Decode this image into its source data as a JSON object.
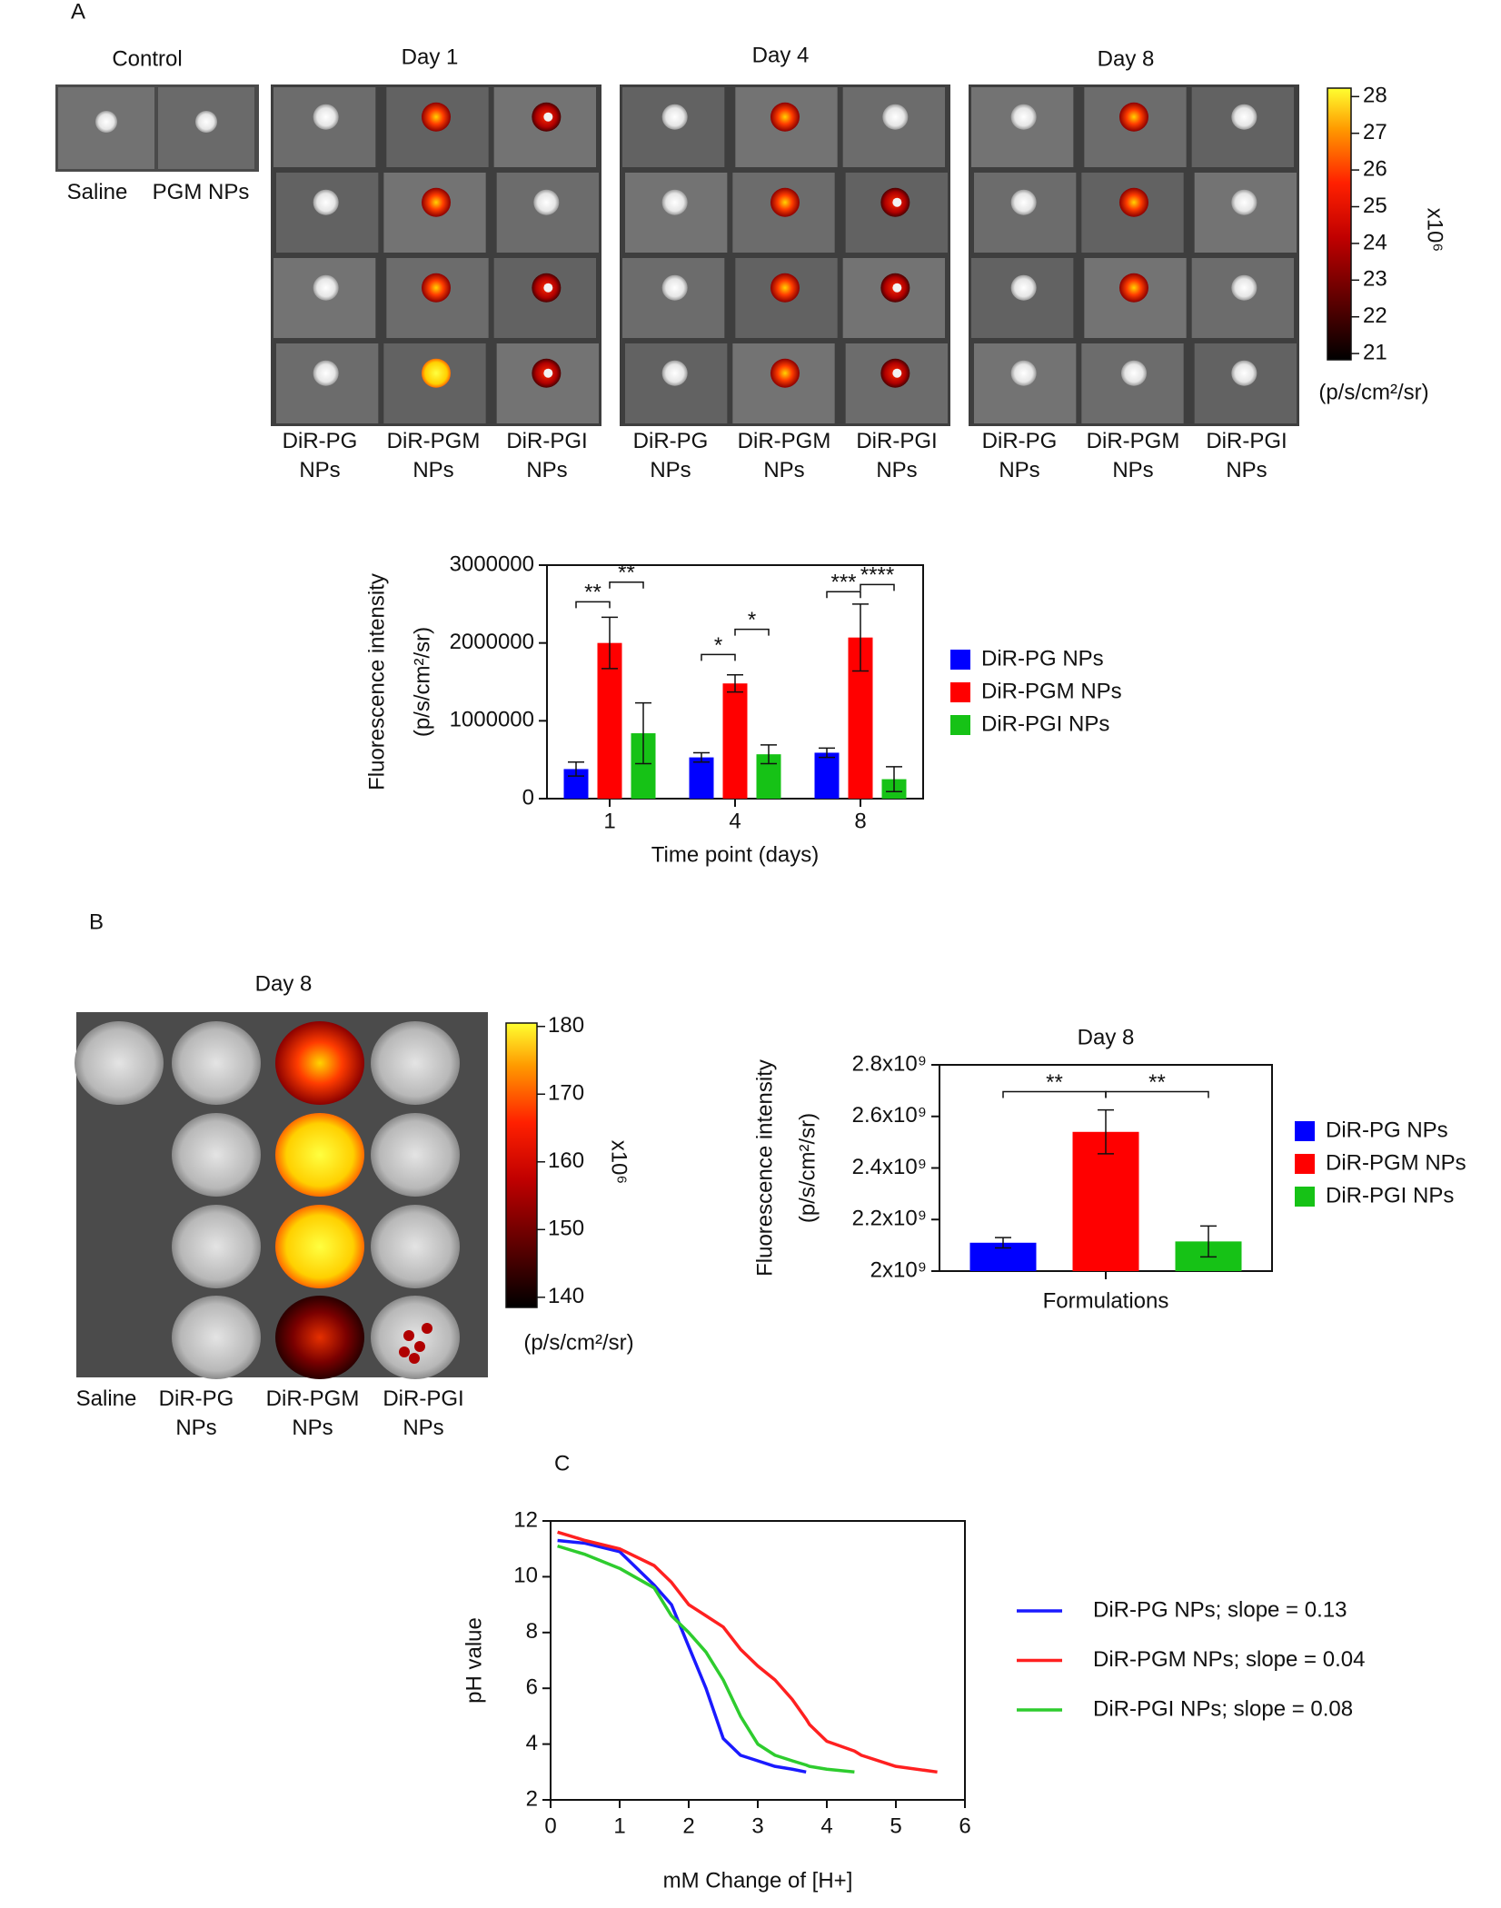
{
  "panel_a": {
    "label": "A",
    "groups": [
      {
        "title": "Control",
        "samples": [
          "Saline",
          "PGM NPs"
        ]
      },
      {
        "title": "Day 1",
        "samples": [
          "DiR-PG NPs",
          "DiR-PGM NPs",
          "DiR-PGI NPs"
        ]
      },
      {
        "title": "Day 4",
        "samples": [
          "DiR-PG NPs",
          "DiR-PGM NPs",
          "DiR-PGI NPs"
        ]
      },
      {
        "title": "Day 8",
        "samples": [
          "DiR-PG NPs",
          "DiR-PGM NPs",
          "DiR-PGI NPs"
        ]
      }
    ],
    "colorbar": {
      "lim": [
        20.83,
        28.23
      ],
      "ticks": [
        21,
        22,
        23,
        24,
        25,
        26,
        27,
        28
      ],
      "multiplier": "x10⁶",
      "unit": "(p/s/cm²/sr)"
    }
  },
  "panel_b": {
    "label": "B",
    "title": "Day 8",
    "samples": [
      "Saline",
      "DiR-PG NPs",
      "DiR-PGM NPs",
      "DiR-PGI NPs"
    ],
    "colorbar": {
      "lim": [
        138.5,
        180.5
      ],
      "ticks": [
        140,
        150,
        160,
        170,
        180
      ],
      "multiplier": "x10⁶",
      "unit": "(p/s/cm²/sr)"
    }
  },
  "panel_c": {
    "label": "C"
  },
  "chart_data": [
    {
      "type": "bar",
      "x_label": "Time point (days)",
      "y_label": "Fluorescence intensity",
      "y_unit": "(p/s/cm²/sr)",
      "categories": [
        "1",
        "4",
        "8"
      ],
      "series": [
        {
          "name": "DiR-PG NPs",
          "color": "#0000ff",
          "values": [
            380000,
            530000,
            590000
          ],
          "errors": [
            90000,
            60000,
            60000
          ]
        },
        {
          "name": "DiR-PGM NPs",
          "color": "#ff0000",
          "values": [
            2000000,
            1480000,
            2070000
          ],
          "errors": [
            330000,
            110000,
            430000
          ]
        },
        {
          "name": "DiR-PGI NPs",
          "color": "#16c216",
          "values": [
            840000,
            570000,
            250000
          ],
          "errors": [
            390000,
            120000,
            160000
          ]
        }
      ],
      "ylim": [
        0,
        3000000
      ],
      "yticks": [
        0,
        1000000,
        2000000,
        3000000
      ],
      "significance": [
        "**",
        "**",
        "*",
        "*",
        "***",
        "****"
      ]
    },
    {
      "type": "bar",
      "title": "Day 8",
      "x_label": "Formulations",
      "y_label": "Fluorescence intensity",
      "y_unit": "(p/s/cm²/sr)",
      "categories": [
        null
      ],
      "series": [
        {
          "name": "DiR-PG NPs",
          "color": "#0000ff",
          "values": [
            2110000000
          ],
          "errors": [
            20000000
          ]
        },
        {
          "name": "DiR-PGM NPs",
          "color": "#ff0000",
          "values": [
            2540000000
          ],
          "errors": [
            85000000
          ]
        },
        {
          "name": "DiR-PGI NPs",
          "color": "#16c216",
          "values": [
            2115000000
          ],
          "errors": [
            60000000
          ]
        }
      ],
      "ylim": [
        2000000000,
        2800000000
      ],
      "yticks": [
        {
          "value": 2000000000,
          "label": "2x10⁹"
        },
        {
          "value": 2200000000,
          "label": "2.2x10⁹"
        },
        {
          "value": 2400000000,
          "label": "2.4x10⁹"
        },
        {
          "value": 2600000000,
          "label": "2.6x10⁹"
        },
        {
          "value": 2800000000,
          "label": "2.8x10⁹"
        }
      ],
      "significance": [
        "**",
        "**"
      ]
    },
    {
      "type": "line",
      "x_label": "mM Change of [H+]",
      "y_label": "pH value",
      "x": [
        0.1,
        0.5,
        1.0,
        1.5,
        1.75,
        2.0,
        2.25,
        2.5,
        2.75,
        3.0,
        3.25,
        3.5,
        3.7,
        3.75,
        4.0,
        4.4,
        4.5,
        5.0,
        5.6
      ],
      "series": [
        {
          "name": "DiR-PG NPs; slope = 0.13",
          "color": "#1a1aff",
          "values": [
            11.3,
            11.2,
            10.9,
            9.7,
            9.0,
            7.5,
            6.0,
            4.2,
            3.6,
            3.4,
            3.2,
            3.1,
            3.0,
            null,
            null,
            null,
            null,
            null,
            null
          ]
        },
        {
          "name": "DiR-PGM NPs; slope = 0.04",
          "color": "#ff2020",
          "values": [
            11.6,
            11.3,
            11.0,
            10.4,
            9.8,
            9.0,
            8.6,
            8.2,
            7.4,
            6.8,
            6.3,
            5.6,
            4.9,
            4.7,
            4.1,
            3.75,
            3.6,
            3.2,
            3.0
          ]
        },
        {
          "name": "DiR-PGI NPs; slope = 0.08",
          "color": "#2ecc2e",
          "values": [
            11.1,
            10.8,
            10.3,
            9.6,
            8.6,
            8.0,
            7.3,
            6.3,
            5.0,
            4.0,
            3.6,
            3.4,
            3.25,
            3.2,
            3.1,
            3.0,
            null,
            null,
            null
          ]
        }
      ],
      "xlim": [
        0,
        6
      ],
      "xticks": [
        0,
        1,
        2,
        3,
        4,
        5,
        6
      ],
      "ylim": [
        2,
        12
      ],
      "yticks": [
        2,
        4,
        6,
        8,
        10,
        12
      ]
    }
  ]
}
